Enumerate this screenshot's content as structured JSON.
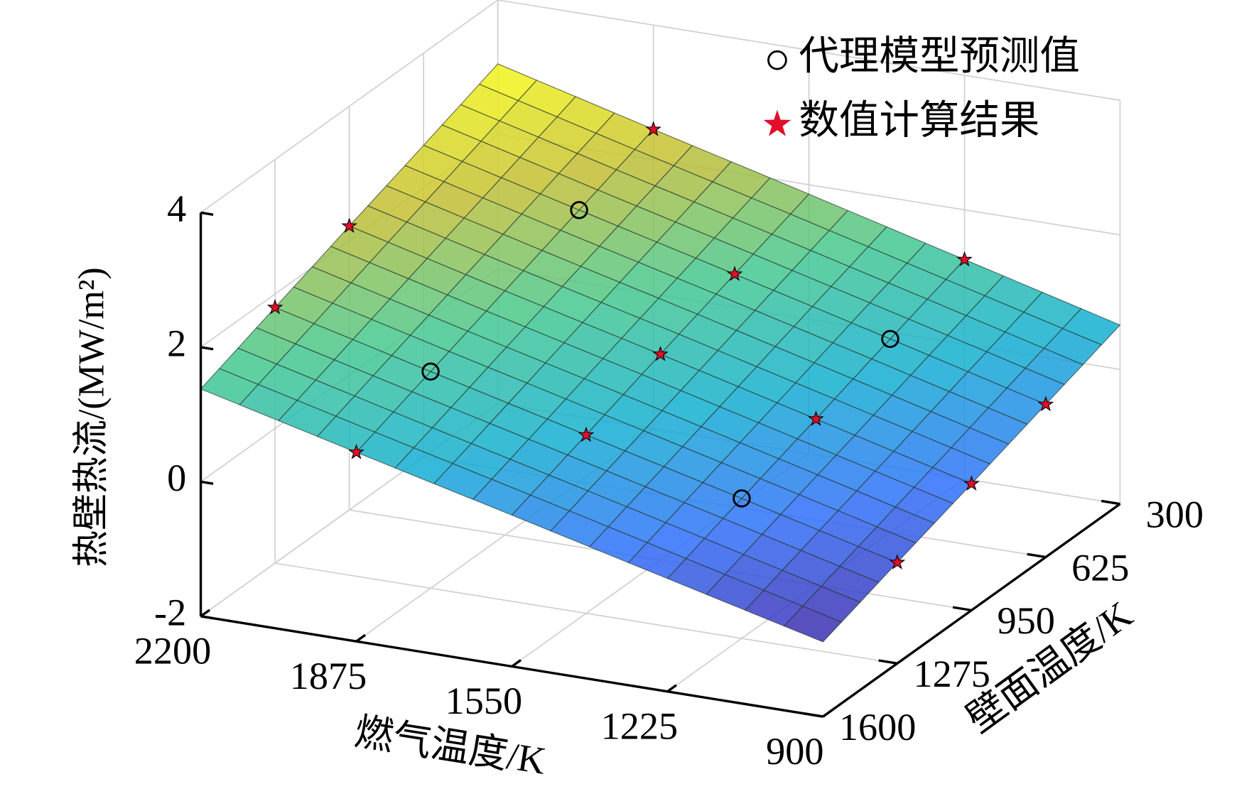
{
  "chart_data": {
    "type": "surface3d",
    "xlabel": "燃气温度/K",
    "ylabel": "壁面温度/K",
    "zlabel": "热壁热流/(MW/m²)",
    "xlim": [
      2200,
      900
    ],
    "ylim": [
      1600,
      300
    ],
    "zlim": [
      -2,
      4
    ],
    "xticks": [
      2200,
      1875,
      1550,
      1225,
      900
    ],
    "yticks": [
      300,
      625,
      950,
      1275,
      1600
    ],
    "zticks": [
      -2,
      0,
      2,
      4
    ],
    "grid": true,
    "colormap": [
      "#3e26a8",
      "#2f6ffb",
      "#13b0d0",
      "#46c88e",
      "#c2bd33",
      "#f9fb15"
    ],
    "surface": {
      "x": [
        2200,
        1875,
        1550,
        1225,
        900
      ],
      "y": [
        300,
        625,
        950,
        1275,
        1600
      ],
      "z": [
        [
          3.05,
          2.45,
          1.86,
          1.26,
          0.66
        ],
        [
          2.63,
          2.04,
          1.46,
          0.87,
          0.27
        ],
        [
          2.22,
          1.63,
          1.06,
          0.47,
          -0.12
        ],
        [
          1.8,
          1.22,
          0.65,
          0.08,
          -0.5
        ],
        [
          1.38,
          0.81,
          0.25,
          -0.32,
          -0.89
        ]
      ]
    },
    "series": [
      {
        "name": "代理模型预测值",
        "marker": "circle",
        "color": "#000000",
        "x": [
          1875,
          1225,
          1875,
          1225
        ],
        "y": [
          625,
          625,
          1275,
          1275
        ],
        "z": [
          2.04,
          0.87,
          1.22,
          0.08
        ]
      },
      {
        "name": "数值计算结果",
        "marker": "star",
        "color": "#e0102a",
        "x": [
          2200,
          2200,
          1875,
          1550,
          1550,
          1225,
          900,
          900,
          1550,
          1875,
          1225,
          900
        ],
        "y": [
          950,
          1275,
          300,
          625,
          1275,
          950,
          625,
          950,
          950,
          1600,
          300,
          1275
        ],
        "z": [
          2.22,
          1.8,
          2.45,
          1.46,
          0.65,
          0.47,
          0.27,
          -0.12,
          1.06,
          0.81,
          1.26,
          -0.5
        ]
      }
    ],
    "legend": "top-right"
  }
}
